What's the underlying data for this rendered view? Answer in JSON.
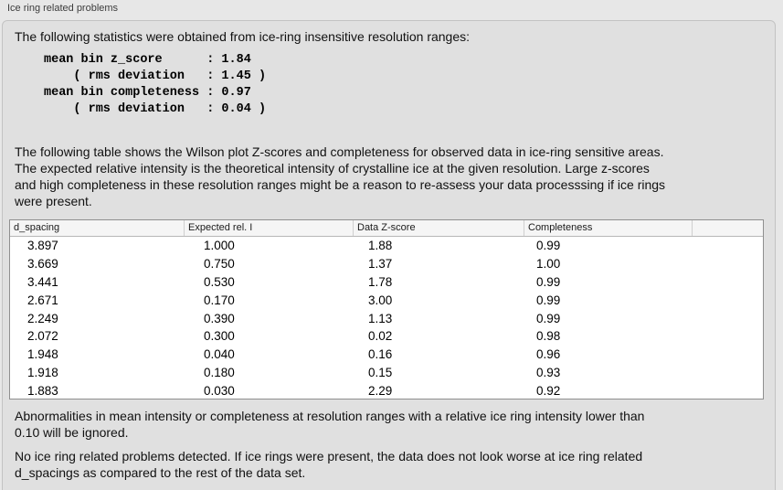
{
  "panel": {
    "label": "Ice ring related problems",
    "intro": "The following statistics were obtained from ice-ring insensitive resolution ranges:",
    "stats_block": "mean bin z_score      : 1.84\n    ( rms deviation   : 1.45 )\nmean bin completeness : 0.97\n    ( rms deviation   : 0.04 )",
    "table_description": "The following table shows the Wilson plot Z-scores and completeness for observed data in ice-ring sensitive areas.\nThe expected relative intensity is the theoretical intensity of crystalline ice at the given resolution. Large z-scores\nand high completeness in these resolution ranges might be a reason to re-assess your data processsing if ice rings\nwere present.",
    "ignore_note": "Abnormalities in mean intensity or completeness at resolution ranges with a relative ice ring intensity lower than\n0.10 will be ignored.",
    "conclusion": "No ice ring related problems detected. If ice rings were present, the data does not look worse at ice ring related\nd_spacings as compared to the rest of the data set."
  },
  "table": {
    "columns": [
      "d_spacing",
      "Expected rel. I",
      "Data Z-score",
      "Completeness",
      ""
    ],
    "rows": [
      [
        "3.897",
        "1.000",
        "1.88",
        "0.99"
      ],
      [
        "3.669",
        "0.750",
        "1.37",
        "1.00"
      ],
      [
        "3.441",
        "0.530",
        "1.78",
        "0.99"
      ],
      [
        "2.671",
        "0.170",
        "3.00",
        "0.99"
      ],
      [
        "2.249",
        "0.390",
        "1.13",
        "0.99"
      ],
      [
        "2.072",
        "0.300",
        "0.02",
        "0.98"
      ],
      [
        "1.948",
        "0.040",
        "0.16",
        "0.96"
      ],
      [
        "1.918",
        "0.180",
        "0.15",
        "0.93"
      ],
      [
        "1.883",
        "0.030",
        "2.29",
        "0.92"
      ]
    ]
  },
  "colors": {
    "page_background": "#e7e7e7",
    "panel_fill": "#e0e0e0",
    "panel_border": "#c3c3c3",
    "table_border": "#8f8f8f",
    "table_header_fill": "#f5f5f5"
  }
}
